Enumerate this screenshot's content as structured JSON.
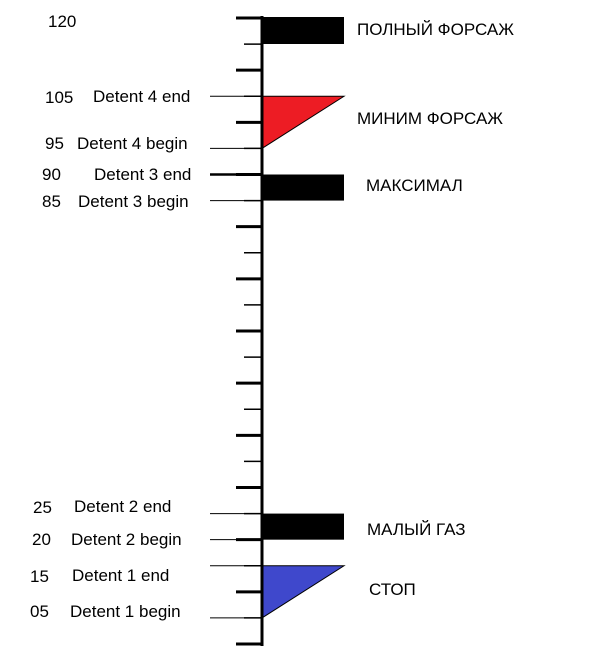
{
  "colors": {
    "line": "#000000",
    "afterburner_min": "#ed1c24",
    "stop": "#3f48cc",
    "block": "#000000"
  },
  "scale": {
    "top_value": "120",
    "ticks": [
      120,
      115,
      110,
      105,
      100,
      95,
      90,
      85,
      80,
      75,
      70,
      65,
      60,
      55,
      50,
      45,
      40,
      35,
      30,
      25,
      20,
      15,
      10,
      5,
      0
    ]
  },
  "detents": [
    {
      "value": "105",
      "label": "Detent 4 end"
    },
    {
      "value": "95",
      "label": "Detent 4 begin"
    },
    {
      "value": "90",
      "label": "Detent 3 end"
    },
    {
      "value": "85",
      "label": "Detent 3 begin"
    },
    {
      "value": "25",
      "label": "Detent 2 end"
    },
    {
      "value": "20",
      "label": "Detent 2 begin"
    },
    {
      "value": "15",
      "label": "Detent 1 end"
    },
    {
      "value": "05",
      "label": "Detent 1 begin"
    }
  ],
  "zones": [
    {
      "label": "ПОЛНЫЙ ФОРСАЖ",
      "shape": "block",
      "icon": "block-marker"
    },
    {
      "label": "МИНИМ ФОРСАЖ",
      "shape": "triangle",
      "icon": "triangle-marker"
    },
    {
      "label": "МАКСИМАЛ",
      "shape": "block",
      "icon": "block-marker"
    },
    {
      "label": "МАЛЫЙ ГАЗ",
      "shape": "block",
      "icon": "block-marker"
    },
    {
      "label": "СТОП",
      "shape": "triangle",
      "icon": "triangle-marker"
    }
  ]
}
